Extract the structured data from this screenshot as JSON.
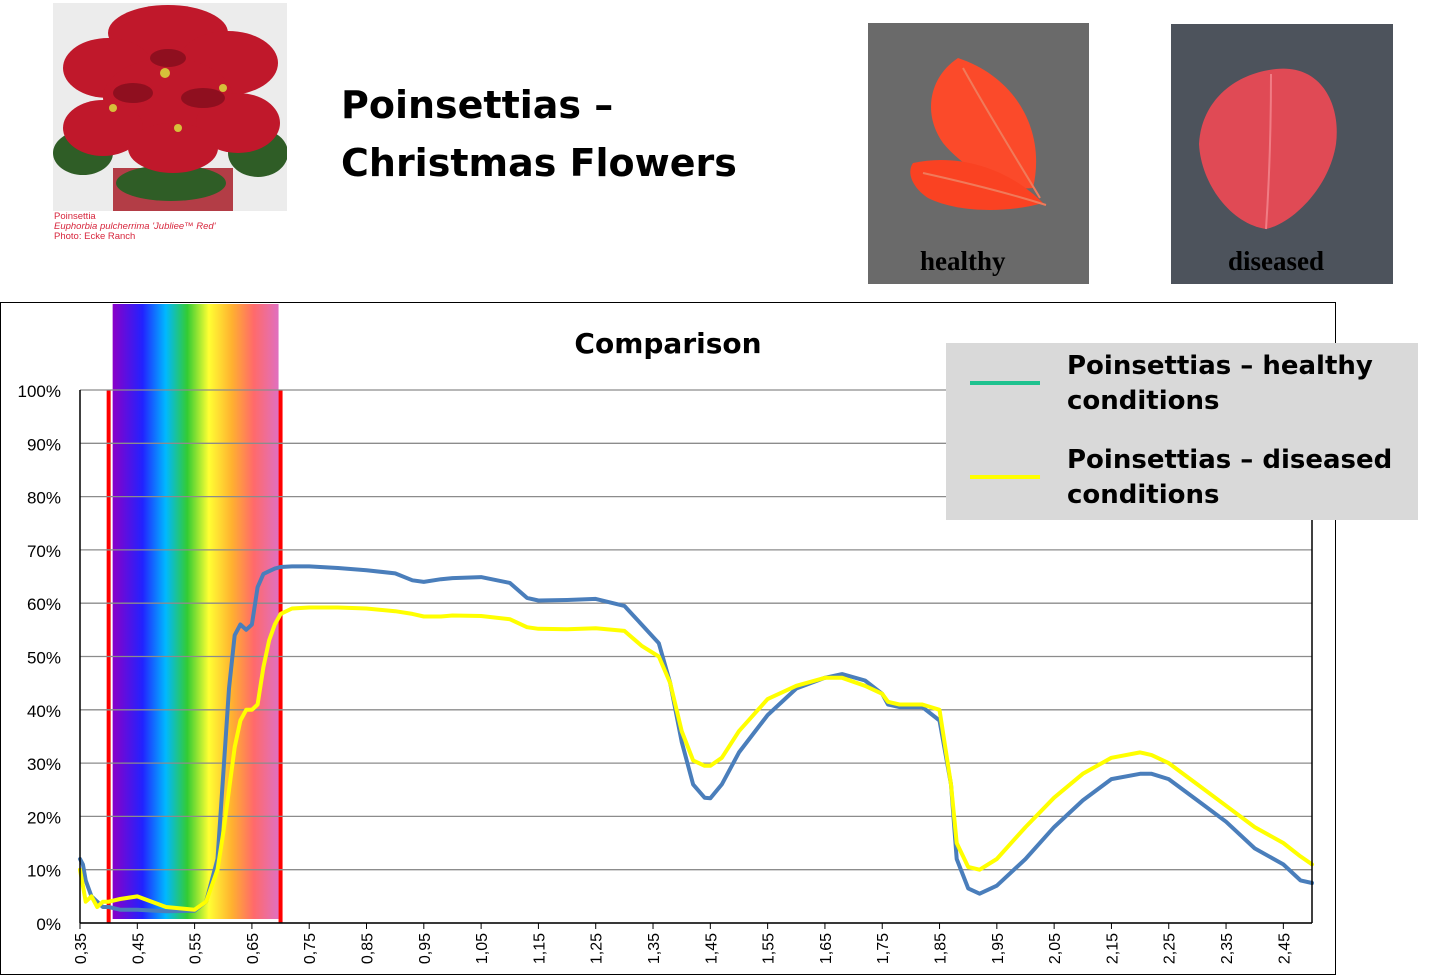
{
  "header": {
    "title_line1": "Poinsettias –",
    "title_line2": "Christmas Flowers"
  },
  "photo_credit": {
    "line1": "Poinsettia",
    "line2": "Euphorbia pulcherrima 'Jubliee™ Red'",
    "line3": "Photo: Ecke Ranch"
  },
  "leaf_photos": {
    "healthy_label": "healthy",
    "diseased_label": "diseased"
  },
  "colors": {
    "healthy": "#4a7ebb",
    "diseased": "#ffff00",
    "legend_healthy_swatch": "#1fc28f",
    "visible_band_border": "#ff0000",
    "legend_bg": "#d9d9d9"
  },
  "legend": {
    "placement": "top-right",
    "items": [
      {
        "label_line1": "Poinsettias – healthy",
        "label_line2": "conditions"
      },
      {
        "label_line1": "Poinsettias – diseased",
        "label_line2": "conditions"
      }
    ]
  },
  "chart_data": {
    "type": "line",
    "title": "Comparison",
    "xlabel": "",
    "ylabel": "",
    "xlim": [
      0.35,
      2.5
    ],
    "ylim": [
      0,
      100
    ],
    "grid": true,
    "x_ticks": [
      "0,35",
      "0,45",
      "0,55",
      "0,65",
      "0,75",
      "0,85",
      "0,95",
      "1,05",
      "1,15",
      "1,25",
      "1,35",
      "1,45",
      "1,55",
      "1,65",
      "1,75",
      "1,85",
      "1,95",
      "2,05",
      "2,15",
      "2,25",
      "2,35",
      "2,45"
    ],
    "x_tick_values": [
      0.35,
      0.45,
      0.55,
      0.65,
      0.75,
      0.85,
      0.95,
      1.05,
      1.15,
      1.25,
      1.35,
      1.45,
      1.55,
      1.65,
      1.75,
      1.85,
      1.95,
      2.05,
      2.15,
      2.25,
      2.35,
      2.45
    ],
    "y_ticks": [
      "0%",
      "10%",
      "20%",
      "30%",
      "40%",
      "50%",
      "60%",
      "70%",
      "80%",
      "90%",
      "100%"
    ],
    "y_tick_values": [
      0,
      10,
      20,
      30,
      40,
      50,
      60,
      70,
      80,
      90,
      100
    ],
    "visible_band": [
      0.4,
      0.7
    ],
    "series": [
      {
        "name": "Poinsettias – healthy conditions",
        "x": [
          0.35,
          0.355,
          0.36,
          0.37,
          0.38,
          0.39,
          0.4,
          0.42,
          0.45,
          0.5,
          0.55,
          0.57,
          0.59,
          0.6,
          0.61,
          0.62,
          0.63,
          0.64,
          0.65,
          0.66,
          0.67,
          0.68,
          0.69,
          0.7,
          0.72,
          0.75,
          0.8,
          0.85,
          0.9,
          0.93,
          0.95,
          0.98,
          1.0,
          1.05,
          1.1,
          1.13,
          1.15,
          1.2,
          1.25,
          1.3,
          1.33,
          1.36,
          1.38,
          1.4,
          1.42,
          1.44,
          1.45,
          1.47,
          1.5,
          1.55,
          1.6,
          1.65,
          1.68,
          1.72,
          1.75,
          1.76,
          1.78,
          1.82,
          1.85,
          1.87,
          1.88,
          1.9,
          1.92,
          1.95,
          2.0,
          2.05,
          2.1,
          2.15,
          2.2,
          2.22,
          2.25,
          2.3,
          2.35,
          2.4,
          2.45,
          2.48,
          2.5
        ],
        "values": [
          12,
          11,
          8,
          5,
          4,
          3,
          3,
          2.5,
          2.5,
          2.2,
          2.3,
          4,
          12,
          28,
          44,
          54,
          56,
          55,
          56,
          63,
          65.5,
          66,
          66.5,
          66.8,
          66.9,
          66.9,
          66.6,
          66.2,
          65.6,
          64.3,
          64,
          64.5,
          64.7,
          64.9,
          63.8,
          61,
          60.5,
          60.6,
          60.8,
          59.5,
          56,
          52.5,
          45,
          34,
          26,
          23.5,
          23.4,
          26,
          32,
          39,
          44,
          46,
          46.7,
          45.5,
          43,
          41,
          40.5,
          40.5,
          38,
          26,
          12,
          6.5,
          5.5,
          7,
          12,
          18,
          23,
          27,
          28,
          28,
          27,
          23,
          19,
          14,
          11,
          8,
          7.5
        ]
      },
      {
        "name": "Poinsettias – diseased conditions",
        "x": [
          0.35,
          0.355,
          0.36,
          0.37,
          0.38,
          0.39,
          0.4,
          0.42,
          0.45,
          0.5,
          0.55,
          0.57,
          0.59,
          0.6,
          0.61,
          0.62,
          0.63,
          0.64,
          0.65,
          0.66,
          0.67,
          0.68,
          0.69,
          0.7,
          0.72,
          0.75,
          0.8,
          0.85,
          0.9,
          0.93,
          0.95,
          0.98,
          1.0,
          1.05,
          1.1,
          1.13,
          1.15,
          1.2,
          1.25,
          1.3,
          1.33,
          1.36,
          1.38,
          1.4,
          1.42,
          1.44,
          1.45,
          1.47,
          1.5,
          1.55,
          1.6,
          1.65,
          1.68,
          1.72,
          1.75,
          1.76,
          1.78,
          1.82,
          1.85,
          1.87,
          1.88,
          1.9,
          1.92,
          1.95,
          2.0,
          2.05,
          2.1,
          2.15,
          2.2,
          2.22,
          2.25,
          2.3,
          2.35,
          2.4,
          2.45,
          2.48,
          2.5
        ],
        "values": [
          10,
          7,
          4,
          5,
          3,
          4,
          4,
          4.5,
          5,
          3,
          2.5,
          4,
          10,
          17,
          25,
          33,
          38,
          40,
          40,
          41,
          48,
          53,
          56,
          58,
          59,
          59.2,
          59.2,
          59,
          58.5,
          58,
          57.5,
          57.5,
          57.7,
          57.6,
          57,
          55.5,
          55.2,
          55.1,
          55.3,
          54.8,
          52,
          50,
          45,
          36,
          30.5,
          29.5,
          29.5,
          31,
          36,
          42,
          44.5,
          46,
          46,
          44.5,
          43,
          41.5,
          41,
          41,
          40,
          26,
          15,
          10.5,
          10,
          12,
          18,
          23.5,
          28,
          31,
          32,
          31.5,
          30,
          26,
          22,
          18,
          15,
          12.5,
          11
        ]
      }
    ]
  }
}
